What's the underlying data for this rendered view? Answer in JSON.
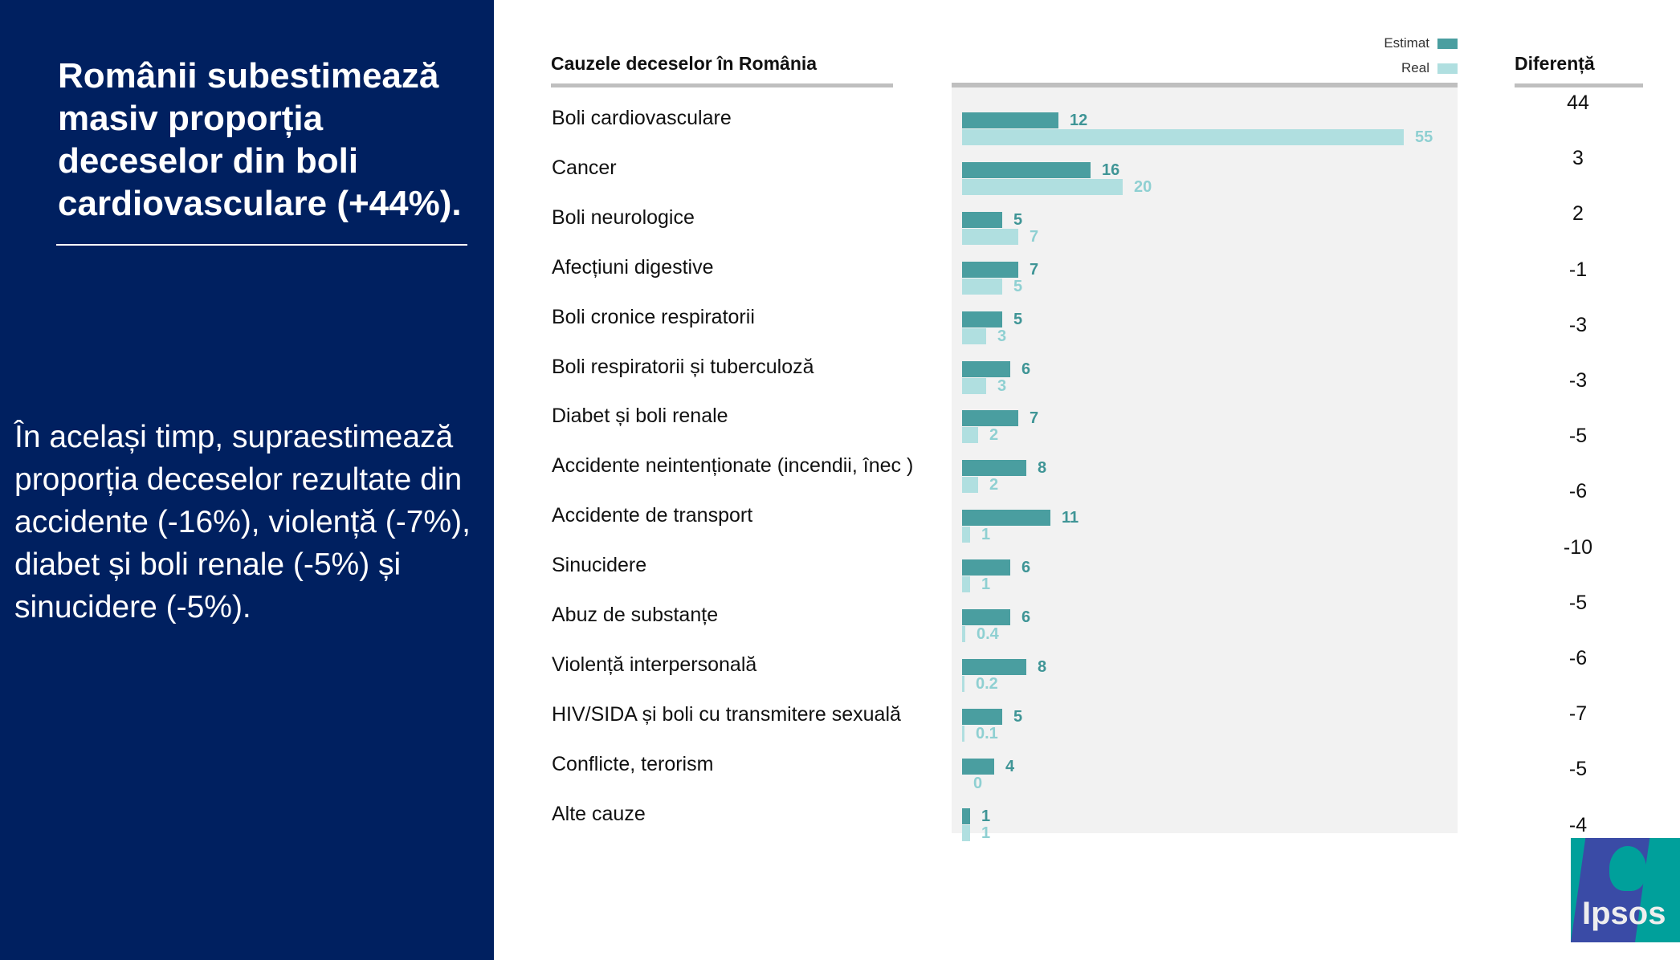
{
  "left": {
    "title": "Românii subestimează masiv proporția deceselor din boli cardiovasculare (+44%).",
    "body": "În același timp, supraestimează proporția deceselor rezultate din accidente (-16%), violență (-7%), diabet și boli renale (-5%) și sinucidere (-5%)."
  },
  "logo": {
    "text": "Ipsos"
  },
  "colors": {
    "estimat": "#4a9ea0",
    "real": "#b0dfe0",
    "navy": "#002060"
  },
  "chart_data": {
    "type": "bar",
    "orientation": "horizontal",
    "title": "Cauzele deceselor în România",
    "legend": [
      "Estimat",
      "Real"
    ],
    "legend_position": "top-right",
    "categories": [
      "Boli cardiovasculare",
      "Cancer",
      "Boli neurologice",
      "Afecțiuni digestive",
      "Boli cronice respiratorii",
      "Boli respiratorii și tuberculoză",
      "Diabet și boli renale",
      "Accidente neintenționate (incendii, înec )",
      "Accidente de transport",
      "Sinucidere",
      "Abuz de substanțe",
      "Violență interpersonală",
      "HIV/SIDA și boli cu transmitere sexuală",
      "Conflicte, terorism",
      "Alte cauze"
    ],
    "series": [
      {
        "name": "Estimat",
        "values": [
          12,
          16,
          5,
          7,
          5,
          6,
          7,
          8,
          11,
          6,
          6,
          8,
          5,
          4,
          1
        ],
        "labels": [
          "12",
          "16",
          "5",
          "7",
          "5",
          "6",
          "7",
          "8",
          "11",
          "6",
          "6",
          "8",
          "5",
          "4",
          "1"
        ]
      },
      {
        "name": "Real",
        "values": [
          55,
          20,
          7,
          5,
          3,
          3,
          2,
          2,
          1,
          1,
          0.4,
          0.2,
          0.1,
          0,
          1
        ],
        "labels": [
          "55",
          "20",
          "7",
          "5",
          "3",
          "3",
          "2",
          "2",
          "1",
          "1",
          "0.4",
          "0.2",
          "0.1",
          "0",
          "1"
        ]
      }
    ],
    "diff_title": "Diferență",
    "diff": [
      "44",
      "3",
      "2",
      "-1",
      "-3",
      "-3",
      "-5",
      "-6",
      "-10",
      "-5",
      "-6",
      "-7",
      "-5",
      "-4"
    ]
  }
}
